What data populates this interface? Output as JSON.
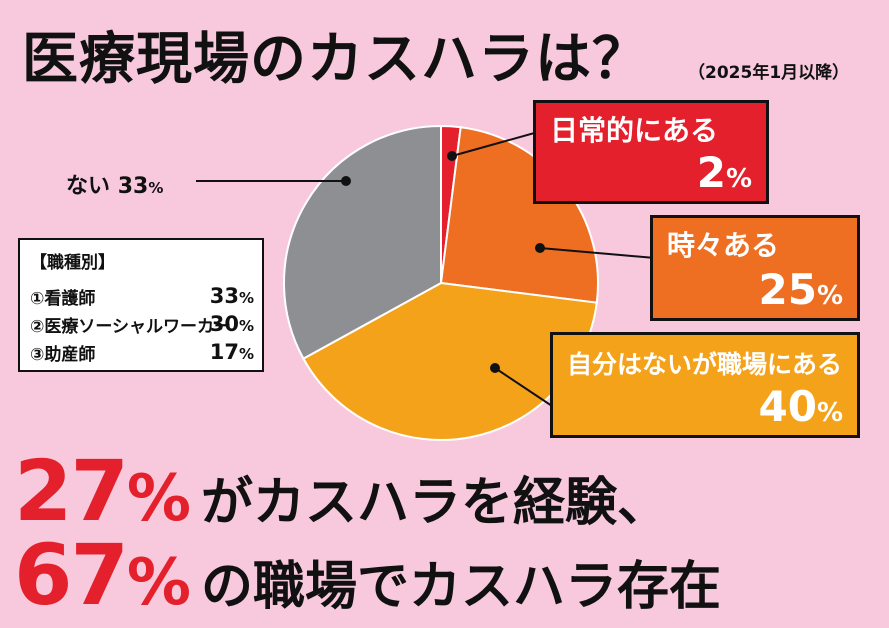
{
  "title": "医療現場のカスハラは？",
  "subtitle": "（2025年1月以降）",
  "chart_data": {
    "type": "pie",
    "title": "医療現場のカスハラは？",
    "subtitle": "（2025年1月以降）",
    "start_angle_deg": 0,
    "direction": "clockwise",
    "slices": [
      {
        "label": "日常的にある",
        "value": 2,
        "display": "2",
        "color": "#e3202b"
      },
      {
        "label": "時々ある",
        "value": 25,
        "display": "25",
        "color": "#ee6e22"
      },
      {
        "label": "自分はないが職場にある",
        "value": 40,
        "display": "40",
        "color": "#f5a21b"
      },
      {
        "label": "ない",
        "value": 33,
        "display": "33",
        "color": "#8d8f92"
      }
    ],
    "unit": "%"
  },
  "job_box": {
    "heading": "【職種別】",
    "rows": [
      {
        "name": "①看護師",
        "value": "33"
      },
      {
        "name": "②医療ソーシャルワーカー",
        "value": "30"
      },
      {
        "name": "③助産師",
        "value": "17"
      }
    ]
  },
  "headline": {
    "line1_num": "27",
    "line1_text": "がカスハラを経験、",
    "line2_num": "67",
    "line2_text": "の職場でカスハラ存在",
    "percent": "%"
  }
}
